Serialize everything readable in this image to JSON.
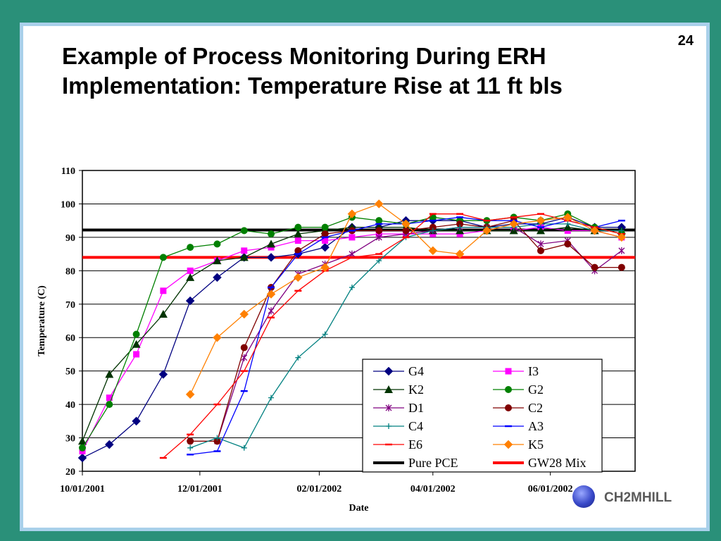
{
  "slide": {
    "page_number": "24",
    "title_line1": "Example of Process Monitoring During ERH",
    "title_line2": "Implementation: Temperature Rise at 11 ft bls",
    "logo_text": "CH2MHILL"
  },
  "chart_data": {
    "type": "line",
    "title": "",
    "xlabel": "Date",
    "ylabel": "Temperature (C)",
    "ylim": [
      20,
      110
    ],
    "yticks": [
      20,
      30,
      40,
      50,
      60,
      70,
      80,
      90,
      100,
      110
    ],
    "xlim": [
      "10/01/2001",
      "07/15/2002"
    ],
    "xticks": [
      {
        "date": "2001-10-01",
        "label": "10/01/2001"
      },
      {
        "date": "2001-12-01",
        "label": "12/01/2001"
      },
      {
        "date": "2002-02-01",
        "label": "02/01/2002"
      },
      {
        "date": "2002-04-01",
        "label": "04/01/2002"
      },
      {
        "date": "2002-06-01",
        "label": "06/01/2002"
      }
    ],
    "grid": "horizontal",
    "legend_position": "bottom-right",
    "series": [
      {
        "name": "G4",
        "color": "#000080",
        "marker": "diamond",
        "x": [
          "2001-10-01",
          "2001-10-15",
          "2001-10-29",
          "2001-11-12",
          "2001-11-26",
          "2001-12-10",
          "2001-12-24",
          "2002-01-07",
          "2002-01-21",
          "2002-02-04",
          "2002-02-18",
          "2002-03-04",
          "2002-03-18",
          "2002-04-01",
          "2002-04-15",
          "2002-04-29",
          "2002-05-13",
          "2002-05-27",
          "2002-06-10",
          "2002-06-24",
          "2002-07-08"
        ],
        "y": [
          24,
          28,
          35,
          49,
          71,
          78,
          84,
          84,
          85,
          87,
          93,
          93,
          95,
          95,
          95,
          93,
          94,
          94,
          96,
          93,
          93
        ]
      },
      {
        "name": "I3",
        "color": "#ff00ff",
        "marker": "square",
        "x": [
          "2001-10-01",
          "2001-10-15",
          "2001-10-29",
          "2001-11-12",
          "2001-11-26",
          "2001-12-10",
          "2001-12-24",
          "2002-01-07",
          "2002-01-21",
          "2002-02-04",
          "2002-02-18",
          "2002-03-04",
          "2002-03-18",
          "2002-04-01",
          "2002-04-15",
          "2002-04-29",
          "2002-05-13",
          "2002-05-27",
          "2002-06-10",
          "2002-06-24",
          "2002-07-08"
        ],
        "y": [
          26,
          42,
          55,
          74,
          80,
          83,
          86,
          87,
          89,
          89,
          90,
          91,
          91,
          91,
          91,
          92,
          92,
          93,
          92,
          92,
          90
        ]
      },
      {
        "name": "K2",
        "color": "#003300",
        "marker": "triangle",
        "x": [
          "2001-10-01",
          "2001-10-15",
          "2001-10-29",
          "2001-11-12",
          "2001-11-26",
          "2001-12-10",
          "2001-12-24",
          "2002-01-07",
          "2002-01-21",
          "2002-02-04",
          "2002-02-18",
          "2002-03-04",
          "2002-03-18",
          "2002-04-01",
          "2002-04-15",
          "2002-04-29",
          "2002-05-13",
          "2002-05-27",
          "2002-06-10",
          "2002-06-24",
          "2002-07-08"
        ],
        "y": [
          29,
          49,
          58,
          67,
          78,
          83,
          84,
          88,
          91,
          92,
          93,
          93,
          93,
          92,
          92,
          92,
          92,
          92,
          93,
          92,
          92
        ]
      },
      {
        "name": "G2",
        "color": "#008000",
        "marker": "circle",
        "x": [
          "2001-10-01",
          "2001-10-15",
          "2001-10-29",
          "2001-11-12",
          "2001-11-26",
          "2001-12-10",
          "2001-12-24",
          "2002-01-07",
          "2002-01-21",
          "2002-02-04",
          "2002-02-18",
          "2002-03-04",
          "2002-03-18",
          "2002-04-01",
          "2002-04-15",
          "2002-04-29",
          "2002-05-13",
          "2002-05-27",
          "2002-06-10",
          "2002-06-24",
          "2002-07-08"
        ],
        "y": [
          27,
          40,
          61,
          84,
          87,
          88,
          92,
          91,
          93,
          93,
          96,
          95,
          94,
          96,
          95,
          95,
          96,
          95,
          97,
          93,
          91
        ]
      },
      {
        "name": "D1",
        "color": "#800080",
        "marker": "star",
        "x": [
          "2001-12-10",
          "2001-12-24",
          "2002-01-07",
          "2002-01-21",
          "2002-02-04",
          "2002-02-18",
          "2002-03-04",
          "2002-03-18",
          "2002-04-01",
          "2002-04-15",
          "2002-04-29",
          "2002-05-13",
          "2002-05-27",
          "2002-06-10",
          "2002-06-24",
          "2002-07-08"
        ],
        "y": [
          29,
          54,
          68,
          79,
          82,
          85,
          90,
          91,
          92,
          93,
          93,
          93,
          88,
          89,
          80,
          86
        ]
      },
      {
        "name": "C2",
        "color": "#800000",
        "marker": "circle",
        "x": [
          "2001-11-26",
          "2001-12-10",
          "2001-12-24",
          "2002-01-07",
          "2002-01-21",
          "2002-02-04",
          "2002-02-18",
          "2002-03-04",
          "2002-03-18",
          "2002-04-01",
          "2002-04-15",
          "2002-04-29",
          "2002-05-13",
          "2002-05-27",
          "2002-06-10",
          "2002-06-24",
          "2002-07-08"
        ],
        "y": [
          29,
          29,
          57,
          75,
          86,
          91,
          92,
          92,
          92,
          93,
          94,
          93,
          95,
          86,
          88,
          81,
          81
        ]
      },
      {
        "name": "C4",
        "color": "#008080",
        "marker": "plus",
        "x": [
          "2001-11-26",
          "2001-12-10",
          "2001-12-24",
          "2002-01-07",
          "2002-01-21",
          "2002-02-04",
          "2002-02-18",
          "2002-03-04",
          "2002-03-18",
          "2002-04-01",
          "2002-04-15",
          "2002-04-29",
          "2002-05-13",
          "2002-05-27",
          "2002-06-10",
          "2002-06-24",
          "2002-07-08"
        ],
        "y": [
          27,
          30,
          27,
          42,
          54,
          61,
          75,
          83,
          90,
          92,
          93,
          93,
          93,
          94,
          94,
          92,
          92
        ]
      },
      {
        "name": "A3",
        "color": "#0000ff",
        "marker": "dash",
        "x": [
          "2001-11-26",
          "2001-12-10",
          "2001-12-24",
          "2002-01-07",
          "2002-01-21",
          "2002-02-04",
          "2002-02-18",
          "2002-03-04",
          "2002-03-18",
          "2002-04-01",
          "2002-04-15",
          "2002-04-29",
          "2002-05-13",
          "2002-05-27",
          "2002-06-10",
          "2002-06-24",
          "2002-07-08"
        ],
        "y": [
          25,
          26,
          44,
          75,
          85,
          90,
          92,
          94,
          94,
          95,
          96,
          95,
          95,
          93,
          95,
          93,
          95
        ]
      },
      {
        "name": "E6",
        "color": "#ff0000",
        "marker": "dash",
        "x": [
          "2001-11-12",
          "2001-11-26",
          "2001-12-10",
          "2001-12-24",
          "2002-01-07",
          "2002-01-21",
          "2002-02-04",
          "2002-02-18",
          "2002-03-04",
          "2002-03-18",
          "2002-04-01",
          "2002-04-15",
          "2002-04-29",
          "2002-05-13",
          "2002-05-27",
          "2002-06-10",
          "2002-06-24",
          "2002-07-08"
        ],
        "y": [
          24,
          31,
          40,
          50,
          66,
          74,
          80,
          84,
          85,
          90,
          97,
          97,
          95,
          96,
          97,
          95,
          93,
          91
        ]
      },
      {
        "name": "K5",
        "color": "#ff8000",
        "marker": "diamond",
        "x": [
          "2001-11-26",
          "2001-12-10",
          "2001-12-24",
          "2002-01-07",
          "2002-01-21",
          "2002-02-04",
          "2002-02-18",
          "2002-03-04",
          "2002-03-18",
          "2002-04-01",
          "2002-04-15",
          "2002-04-29",
          "2002-05-13",
          "2002-05-27",
          "2002-06-10",
          "2002-06-24",
          "2002-07-08"
        ],
        "y": [
          43,
          60,
          67,
          73,
          78,
          81,
          97,
          100,
          94,
          86,
          85,
          92,
          94,
          95,
          96,
          92,
          90
        ]
      },
      {
        "name": "Pure PCE",
        "color": "#000000",
        "marker": "none",
        "constant": 92.2
      },
      {
        "name": "GW28 Mix",
        "color": "#ff0000",
        "marker": "none",
        "constant": 84
      }
    ]
  }
}
